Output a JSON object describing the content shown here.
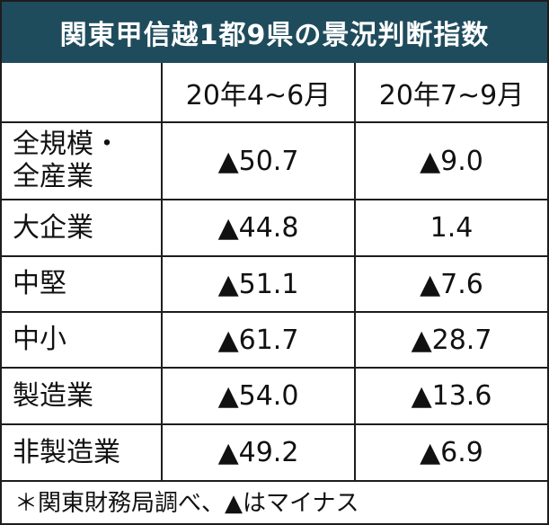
{
  "header": {
    "title": "関東甲信越1都9県の景況判断指数"
  },
  "table": {
    "columns": [
      "20年4~6月",
      "20年7~9月"
    ],
    "rows": [
      {
        "label": "全規模・\n全産業",
        "values": [
          "▲50.7",
          "▲9.0"
        ]
      },
      {
        "label": "大企業",
        "values": [
          "▲44.8",
          "1.4"
        ]
      },
      {
        "label": "中堅",
        "values": [
          "▲51.1",
          "▲7.6"
        ]
      },
      {
        "label": "中小",
        "values": [
          "▲61.7",
          "▲28.7"
        ]
      },
      {
        "label": "製造業",
        "values": [
          "▲54.0",
          "▲13.6"
        ]
      },
      {
        "label": "非製造業",
        "values": [
          "▲49.2",
          "▲6.9"
        ]
      }
    ]
  },
  "footer": {
    "note": "＊関東財務局調べ、▲はマイナス"
  }
}
